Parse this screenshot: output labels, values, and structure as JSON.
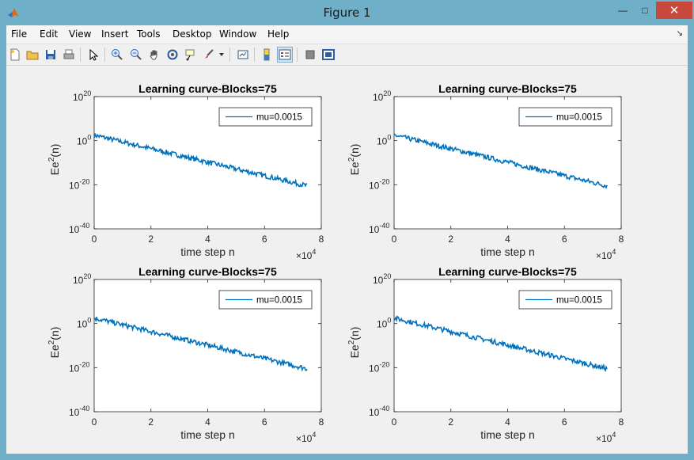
{
  "window": {
    "title": "Figure 1",
    "minimize_glyph": "—",
    "maximize_glyph": "□",
    "close_glyph": "✕"
  },
  "menu": {
    "items": [
      {
        "label": "File"
      },
      {
        "label": "Edit"
      },
      {
        "label": "View"
      },
      {
        "label": "Insert"
      },
      {
        "label": "Tools"
      },
      {
        "label": "Desktop"
      },
      {
        "label": "Window"
      },
      {
        "label": "Help"
      }
    ],
    "dock_glyph": "↘"
  },
  "toolbar": {
    "icons": [
      "new-figure-icon",
      "open-file-icon",
      "save-icon",
      "print-icon",
      "pointer-icon",
      "zoom-in-icon",
      "zoom-out-icon",
      "pan-icon",
      "rotate-3d-icon",
      "data-cursor-icon",
      "brush-icon",
      "chevron-down-icon",
      "link-plot-icon",
      "colorbar-icon",
      "legend-icon",
      "hide-plot-tools-icon",
      "show-plot-tools-icon"
    ]
  },
  "colors": {
    "line": "#0072bd",
    "window_frame": "#6fb0c8",
    "close": "#c9483c"
  },
  "chart_data": [
    {
      "type": "line",
      "title": "Learning curve-Blocks=75",
      "xlabel": "time step n",
      "ylabel_base": "Ee",
      "ylabel_sup": "2",
      "ylabel_suffix": "(n)",
      "x_multiplier_base": "×10",
      "x_multiplier_exp": "4",
      "xlim": [
        0,
        80000
      ],
      "ylim_log10": [
        -40,
        20
      ],
      "y_scale": "log",
      "xticks": [
        "0",
        "2",
        "4",
        "6",
        "8"
      ],
      "yticks": [
        {
          "base": "10",
          "exp": "20"
        },
        {
          "base": "10",
          "exp": "0"
        },
        {
          "base": "10",
          "exp": "-20"
        },
        {
          "base": "10",
          "exp": "-40"
        }
      ],
      "legend": "top-right",
      "series": [
        {
          "name": "mu=0.0015",
          "x": [
            0,
            75000
          ],
          "log10_y": [
            2.5,
            -20.5
          ]
        }
      ]
    },
    {
      "type": "line",
      "title": "Learning curve-Blocks=75",
      "xlabel": "time step n",
      "ylabel_base": "Ee",
      "ylabel_sup": "2",
      "ylabel_suffix": "(n)",
      "x_multiplier_base": "×10",
      "x_multiplier_exp": "4",
      "xlim": [
        0,
        80000
      ],
      "ylim_log10": [
        -40,
        20
      ],
      "y_scale": "log",
      "xticks": [
        "0",
        "2",
        "4",
        "6",
        "8"
      ],
      "yticks": [
        {
          "base": "10",
          "exp": "20"
        },
        {
          "base": "10",
          "exp": "0"
        },
        {
          "base": "10",
          "exp": "-20"
        },
        {
          "base": "10",
          "exp": "-40"
        }
      ],
      "legend": "top-right",
      "series": [
        {
          "name": "mu=0.0015",
          "x": [
            0,
            75000
          ],
          "log10_y": [
            2.5,
            -20.5
          ]
        }
      ]
    },
    {
      "type": "line",
      "title": "Learning curve-Blocks=75",
      "xlabel": "time step n",
      "ylabel_base": "Ee",
      "ylabel_sup": "2",
      "ylabel_suffix": "(n)",
      "x_multiplier_base": "×10",
      "x_multiplier_exp": "4",
      "xlim": [
        0,
        80000
      ],
      "ylim_log10": [
        -40,
        20
      ],
      "y_scale": "log",
      "xticks": [
        "0",
        "2",
        "4",
        "6",
        "8"
      ],
      "yticks": [
        {
          "base": "10",
          "exp": "20"
        },
        {
          "base": "10",
          "exp": "0"
        },
        {
          "base": "10",
          "exp": "-20"
        },
        {
          "base": "10",
          "exp": "-40"
        }
      ],
      "legend": "top-right",
      "series": [
        {
          "name": "mu=0.0015",
          "x": [
            0,
            75000
          ],
          "log10_y": [
            2.5,
            -20.5
          ]
        }
      ]
    },
    {
      "type": "line",
      "title": "Learning curve-Blocks=75",
      "xlabel": "time step n",
      "ylabel_base": "Ee",
      "ylabel_sup": "2",
      "ylabel_suffix": "(n)",
      "x_multiplier_base": "×10",
      "x_multiplier_exp": "4",
      "xlim": [
        0,
        80000
      ],
      "ylim_log10": [
        -40,
        20
      ],
      "y_scale": "log",
      "xticks": [
        "0",
        "2",
        "4",
        "6",
        "8"
      ],
      "yticks": [
        {
          "base": "10",
          "exp": "20"
        },
        {
          "base": "10",
          "exp": "0"
        },
        {
          "base": "10",
          "exp": "-20"
        },
        {
          "base": "10",
          "exp": "-40"
        }
      ],
      "legend": "top-right",
      "series": [
        {
          "name": "mu=0.0015",
          "x": [
            0,
            75000
          ],
          "log10_y": [
            2.5,
            -20.5
          ]
        }
      ]
    }
  ]
}
